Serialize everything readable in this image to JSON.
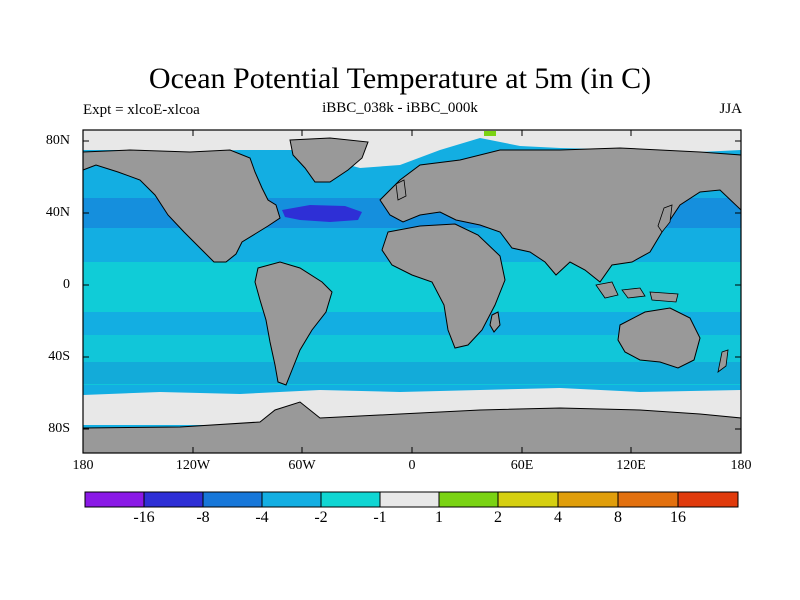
{
  "title": "Ocean Potential Temperature at 5m (in C)",
  "left_subtitle": "Expt = xlcoE-xlcoa",
  "center_subtitle": "iBBC_038k - iBBC_000k",
  "right_subtitle": "JJA",
  "lat_labels": [
    "80N",
    "40N",
    "0",
    "40S",
    "80S"
  ],
  "lon_labels": [
    "180",
    "120W",
    "60W",
    "0",
    "60E",
    "120E",
    "180"
  ],
  "colorbar": {
    "colors": [
      "#8a19e6",
      "#2e2fd6",
      "#1777d9",
      "#13aee2",
      "#10d6d3",
      "#e8e8e8",
      "#7ad313",
      "#d5cf10",
      "#e09e0b",
      "#e2700e",
      "#e03a0c"
    ],
    "labels": [
      "-16",
      "-8",
      "-4",
      "-2",
      "-1",
      "1",
      "2",
      "4",
      "8",
      "16"
    ]
  },
  "colors": {
    "land": "#999999",
    "ocean_main": "#13aee2",
    "ocean_light": "#10d6d3",
    "ocean_dark": "#1777d9",
    "ocean_deep": "#2e2fd6",
    "ice": "#e8e8e8"
  }
}
